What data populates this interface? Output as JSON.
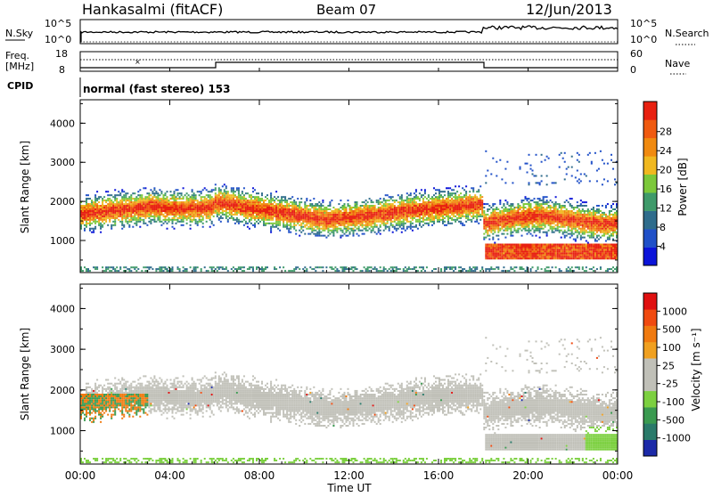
{
  "header": {
    "station": "Hankasalmi (fitACF)",
    "beam": "Beam 07",
    "date": "12/Jun/2013"
  },
  "noise_panel": {
    "left_label": "N.Sky",
    "left_ticks": [
      "10^5",
      "10^0"
    ],
    "right_label": "N.Search",
    "right_ticks": [
      "10^5",
      "10^0"
    ]
  },
  "freq_panel": {
    "left_label_1": "Freq.",
    "left_label_2": "[MHz]",
    "left_ticks": [
      "18",
      "8"
    ],
    "right_ticks": [
      "60",
      "0"
    ],
    "right_label": "Nave"
  },
  "cpid": {
    "label": "CPID",
    "mode": "normal (fast stereo) 153"
  },
  "chart_data": [
    {
      "type": "heatmap",
      "name": "power",
      "ylabel": "Slant Range [km]",
      "ylim": [
        180,
        4600
      ],
      "yticks": [
        "1000",
        "2000",
        "3000",
        "4000"
      ],
      "colorbar_label": "Power [dB]",
      "colorbar_ticks": [
        "4",
        "8",
        "12",
        "16",
        "20",
        "24",
        "28"
      ],
      "colorbar_colors": [
        "#0c14d9",
        "#2050c8",
        "#2f6c8c",
        "#3f9a6a",
        "#7cc83a",
        "#f0b820",
        "#f08a10",
        "#f05a10",
        "#e82010"
      ]
    },
    {
      "type": "heatmap",
      "name": "velocity",
      "ylabel": "Slant Range [km]",
      "ylim": [
        180,
        4600
      ],
      "yticks": [
        "1000",
        "2000",
        "3000",
        "4000"
      ],
      "xlabel": "Time UT",
      "xticks": [
        "00:00",
        "04:00",
        "08:00",
        "12:00",
        "16:00",
        "20:00",
        "00:00"
      ],
      "colorbar_label": "Velocity [m s⁻¹]",
      "colorbar_ticks": [
        "1000",
        "500",
        "100",
        "25",
        "-25",
        "-100",
        "-500",
        "-1000"
      ],
      "colorbar_colors": [
        "#1c2aa8",
        "#2a7a6a",
        "#3a9a50",
        "#7cd040",
        "#c0c0b8",
        "#c0c0b8",
        "#f0a020",
        "#f07a10",
        "#f04a10",
        "#e01010"
      ]
    }
  ]
}
